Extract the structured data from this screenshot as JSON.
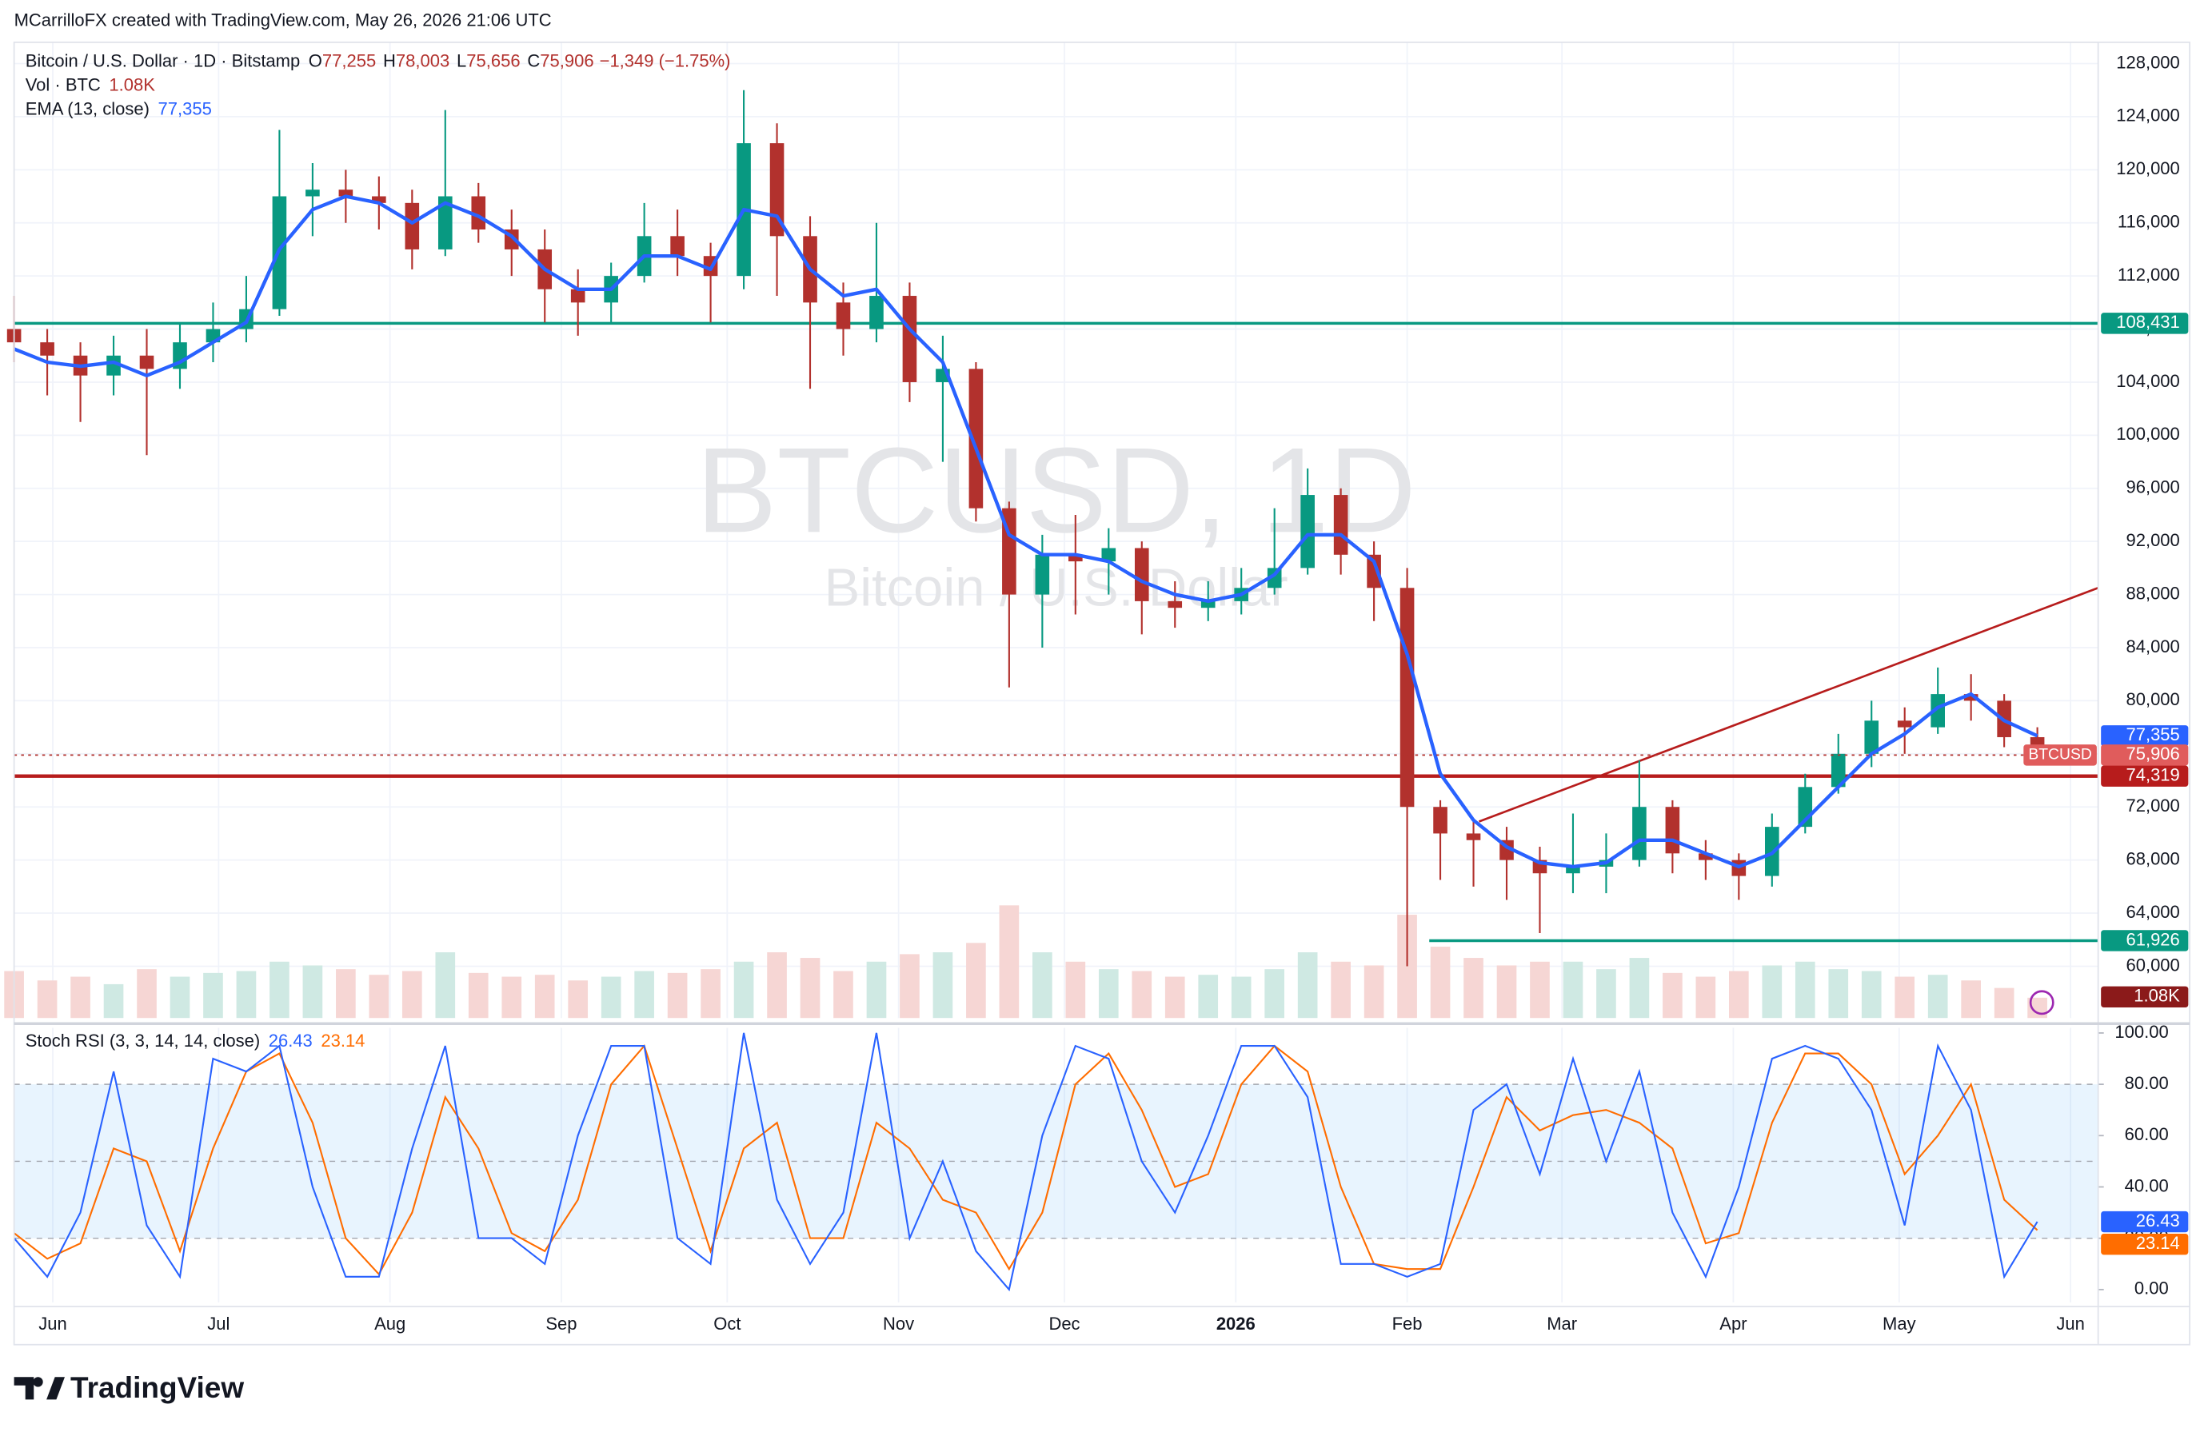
{
  "header": {
    "attribution": "MCarrilloFX created with TradingView.com, May 26, 2026 21:06 UTC",
    "logo": "TradingView"
  },
  "chart_data": [
    {
      "type": "candlestick",
      "symbol_line": "Bitcoin / U.S. Dollar · 1D · Bitstamp",
      "ohlc_legend": [
        {
          "key": "O",
          "value": "77,255"
        },
        {
          "key": "H",
          "value": "78,003"
        },
        {
          "key": "L",
          "value": "75,656"
        },
        {
          "key": "C",
          "value": "75,906"
        }
      ],
      "change": "−1,349 (−1.75%)",
      "watermark": "BTCUSD, 1D",
      "watermark_subtitle": "Bitcoin / U.S. Dollar",
      "x": [
        0,
        6,
        12,
        18,
        24,
        30,
        36,
        42,
        48,
        54,
        60,
        66,
        72,
        78,
        84,
        90,
        96,
        102,
        108,
        114,
        120,
        126,
        132,
        138,
        144,
        150,
        156,
        162,
        168,
        174,
        180,
        186,
        192,
        198,
        204,
        210,
        216,
        222,
        228,
        234,
        240,
        246,
        252,
        258,
        264,
        270,
        276,
        282,
        288,
        294,
        300,
        306,
        312,
        318,
        324,
        330,
        336,
        342,
        348,
        354,
        360,
        366
      ],
      "xlim": [
        0,
        377
      ],
      "xticks": [
        {
          "value": 7,
          "label": "Jun"
        },
        {
          "value": 37,
          "label": "Jul"
        },
        {
          "value": 68,
          "label": "Aug"
        },
        {
          "value": 99,
          "label": "Sep"
        },
        {
          "value": 129,
          "label": "Oct"
        },
        {
          "value": 160,
          "label": "Nov"
        },
        {
          "value": 190,
          "label": "Dec"
        },
        {
          "value": 221,
          "label": "2026"
        },
        {
          "value": 252,
          "label": "Feb"
        },
        {
          "value": 280,
          "label": "Mar"
        },
        {
          "value": 311,
          "label": "Apr"
        },
        {
          "value": 341,
          "label": "May"
        },
        {
          "value": 372,
          "label": "Jun"
        }
      ],
      "ylim": [
        56100,
        129600
      ],
      "yticks": [
        {
          "value": 60000,
          "label": "60,000"
        },
        {
          "value": 64000,
          "label": "64,000"
        },
        {
          "value": 68000,
          "label": "68,000"
        },
        {
          "value": 72000,
          "label": "72,000"
        },
        {
          "value": 76000,
          "label": "76,000"
        },
        {
          "value": 80000,
          "label": "80,000"
        },
        {
          "value": 84000,
          "label": "84,000"
        },
        {
          "value": 88000,
          "label": "88,000"
        },
        {
          "value": 92000,
          "label": "92,000"
        },
        {
          "value": 96000,
          "label": "96,000"
        },
        {
          "value": 100000,
          "label": "100,000"
        },
        {
          "value": 104000,
          "label": "104,000"
        },
        {
          "value": 108000,
          "label": "108,000"
        },
        {
          "value": 112000,
          "label": "112,000"
        },
        {
          "value": 116000,
          "label": "116,000"
        },
        {
          "value": 120000,
          "label": "120,000"
        },
        {
          "value": 124000,
          "label": "124,000"
        },
        {
          "value": 128000,
          "label": "128,000"
        }
      ],
      "grid": true,
      "candles": {
        "up_color": "#089981",
        "down_color": "#b2312d",
        "last_label": "75,906",
        "tag": "BTCUSD",
        "open": [
          108000,
          107000,
          106000,
          104500,
          106000,
          105000,
          107000,
          108000,
          109500,
          118000,
          118500,
          118000,
          117500,
          114000,
          118000,
          115500,
          114000,
          111000,
          110000,
          112000,
          115000,
          113500,
          112000,
          122000,
          115000,
          110000,
          108000,
          110500,
          104000,
          105000,
          94500,
          88000,
          91000,
          90500,
          91500,
          87500,
          87000,
          87500,
          88500,
          90000,
          95500,
          91000,
          88500,
          72000,
          70000,
          69500,
          68000,
          67000,
          67500,
          68000,
          72000,
          68500,
          68000,
          66800,
          70500,
          73500,
          76000,
          78500,
          78000,
          80500,
          80000,
          77255
        ],
        "high": [
          110500,
          108000,
          107000,
          107500,
          108000,
          108500,
          110000,
          112000,
          123000,
          120500,
          120000,
          119500,
          118500,
          124500,
          119000,
          117000,
          115500,
          112500,
          113000,
          117500,
          117000,
          114500,
          126000,
          123500,
          116500,
          111500,
          116000,
          111500,
          107500,
          105500,
          95000,
          92500,
          94000,
          93000,
          92000,
          89000,
          89000,
          90000,
          94500,
          97500,
          96000,
          92000,
          90000,
          72500,
          71000,
          70500,
          69000,
          71500,
          70000,
          75500,
          72500,
          69500,
          68500,
          71500,
          74500,
          77500,
          80000,
          79500,
          82500,
          82000,
          80500,
          78003
        ],
        "low": [
          105500,
          103000,
          101000,
          103000,
          98500,
          103500,
          105500,
          107000,
          109000,
          115000,
          116000,
          115500,
          112500,
          113500,
          114500,
          112000,
          108500,
          107500,
          108500,
          111500,
          112000,
          108500,
          111000,
          110500,
          103500,
          106000,
          107000,
          102500,
          98000,
          93500,
          81000,
          84000,
          86500,
          88000,
          85000,
          85500,
          86000,
          86500,
          88000,
          89500,
          89500,
          86000,
          60000,
          66500,
          66000,
          65000,
          62500,
          65500,
          65500,
          67500,
          67000,
          66500,
          65000,
          66000,
          70000,
          73000,
          75000,
          76000,
          77500,
          78500,
          76500,
          75656
        ],
        "close": [
          107000,
          106000,
          104500,
          106000,
          105000,
          107000,
          108000,
          109500,
          118000,
          118500,
          118000,
          117500,
          114000,
          118000,
          115500,
          114000,
          111000,
          110000,
          112000,
          115000,
          113500,
          112000,
          122000,
          115000,
          110000,
          108000,
          110500,
          104000,
          105000,
          94500,
          88000,
          91000,
          90500,
          91500,
          87500,
          87000,
          87500,
          88500,
          90000,
          95500,
          91000,
          88500,
          72000,
          70000,
          69500,
          68000,
          67000,
          67500,
          68000,
          72000,
          68500,
          68000,
          66800,
          70500,
          73500,
          76000,
          78500,
          78000,
          80500,
          80000,
          77255,
          75906
        ]
      },
      "volume": {
        "name": "Vol · BTC",
        "last_label": "1.08K",
        "up_color": "#cfe9e3",
        "down_color": "#f6d6d4",
        "values": [
          2500,
          2000,
          2200,
          1800,
          2600,
          2200,
          2400,
          2500,
          3000,
          2800,
          2600,
          2300,
          2500,
          3500,
          2400,
          2200,
          2300,
          2000,
          2200,
          2500,
          2400,
          2600,
          3000,
          3500,
          3200,
          2500,
          3000,
          3400,
          3500,
          4000,
          6000,
          3500,
          3000,
          2600,
          2500,
          2200,
          2300,
          2200,
          2600,
          3500,
          3000,
          2800,
          5500,
          3800,
          3200,
          2800,
          3000,
          3000,
          2600,
          3200,
          2400,
          2200,
          2500,
          2800,
          3000,
          2600,
          2500,
          2200,
          2300,
          2000,
          1600,
          1080
        ]
      },
      "series": [
        {
          "name": "EMA (13, close)",
          "color": "#2962ff",
          "last_label": "77,355",
          "values": [
            106500,
            105500,
            105200,
            105500,
            104500,
            105500,
            107000,
            108500,
            114000,
            117000,
            118000,
            117500,
            116000,
            117500,
            116500,
            115000,
            112500,
            111000,
            111000,
            113500,
            113500,
            112500,
            117000,
            116500,
            112500,
            110500,
            111000,
            108000,
            105500,
            99000,
            92500,
            91000,
            91000,
            90500,
            89000,
            88000,
            87500,
            88000,
            89500,
            92500,
            92500,
            90500,
            83500,
            74500,
            71000,
            69000,
            67800,
            67500,
            67800,
            69500,
            69500,
            68500,
            67500,
            68500,
            71000,
            73500,
            76000,
            77500,
            79500,
            80500,
            78500,
            77355
          ]
        }
      ],
      "hlines": [
        {
          "value": 108431,
          "label": "108,431",
          "color": "#089981",
          "from_x": 0
        },
        {
          "value": 74319,
          "label": "74,319",
          "color": "#b71c1c",
          "from_x": 0
        },
        {
          "value": 61926,
          "label": "61,926",
          "color": "#089981",
          "from_x": 256
        }
      ],
      "trendline": {
        "x": [
          265,
          377
        ],
        "y": [
          70900,
          88500
        ],
        "color": "#b71c1c"
      }
    },
    {
      "type": "line",
      "title": "Stoch RSI (3, 3, 14, 14, close)",
      "x": [
        0,
        6,
        12,
        18,
        24,
        30,
        36,
        42,
        48,
        54,
        60,
        66,
        72,
        78,
        84,
        90,
        96,
        102,
        108,
        114,
        120,
        126,
        132,
        138,
        144,
        150,
        156,
        162,
        168,
        174,
        180,
        186,
        192,
        198,
        204,
        210,
        216,
        222,
        228,
        234,
        240,
        246,
        252,
        258,
        264,
        270,
        276,
        282,
        288,
        294,
        300,
        306,
        312,
        318,
        324,
        330,
        336,
        342,
        348,
        354,
        360,
        366
      ],
      "ylim": [
        -5,
        102
      ],
      "yticks": [
        {
          "value": 0,
          "label": "0.00"
        },
        {
          "value": 20,
          "label": "20.00"
        },
        {
          "value": 40,
          "label": "40.00"
        },
        {
          "value": 60,
          "label": "60.00"
        },
        {
          "value": 80,
          "label": "80.00"
        },
        {
          "value": 100,
          "label": "100.00"
        }
      ],
      "band": [
        20,
        80
      ],
      "levels": [
        20,
        50,
        80
      ],
      "series": [
        {
          "color": "#2962ff",
          "values": [
            20,
            5,
            30,
            85,
            25,
            5,
            90,
            85,
            95,
            40,
            5,
            5,
            55,
            95,
            20,
            20,
            10,
            60,
            95,
            95,
            20,
            10,
            100,
            35,
            10,
            30,
            100,
            20,
            50,
            15,
            0,
            60,
            95,
            90,
            50,
            30,
            60,
            95,
            95,
            75,
            10,
            10,
            5,
            10,
            70,
            80,
            45,
            90,
            50,
            85,
            30,
            5,
            40,
            90,
            95,
            90,
            70,
            25,
            95,
            70,
            5,
            26.43
          ]
        },
        {
          "color": "#ff6d00",
          "values": [
            22,
            12,
            18,
            55,
            50,
            15,
            55,
            85,
            92,
            65,
            20,
            6,
            30,
            75,
            55,
            22,
            15,
            35,
            80,
            95,
            55,
            15,
            55,
            65,
            20,
            20,
            65,
            55,
            35,
            30,
            8,
            30,
            80,
            92,
            70,
            40,
            45,
            80,
            95,
            85,
            40,
            10,
            8,
            8,
            40,
            75,
            62,
            68,
            70,
            65,
            55,
            18,
            22,
            65,
            92,
            92,
            80,
            45,
            60,
            80,
            35,
            23.14
          ]
        }
      ]
    }
  ]
}
